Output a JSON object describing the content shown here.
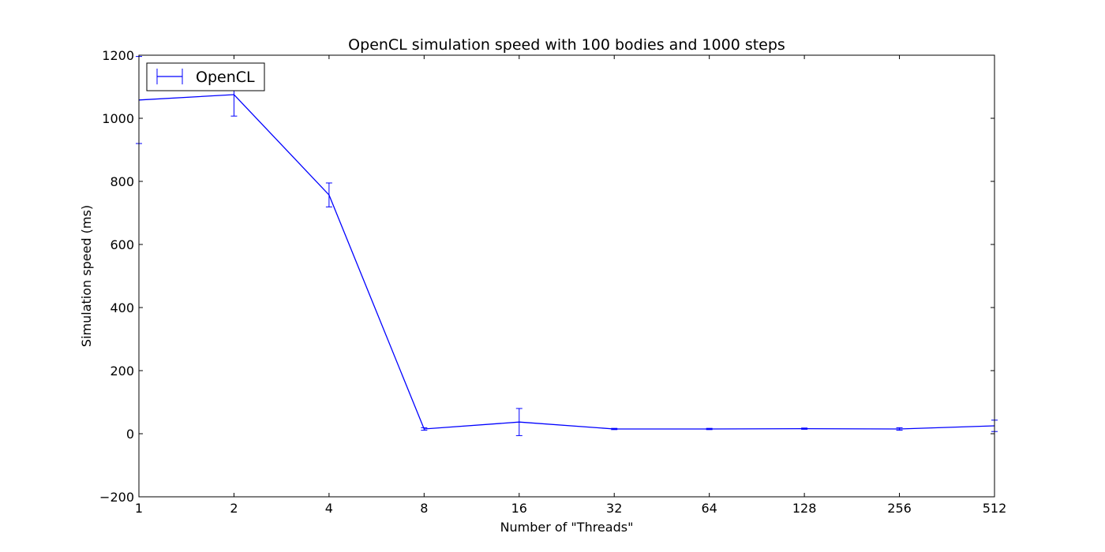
{
  "chart_data": {
    "type": "line",
    "title": "OpenCL simulation speed with 100 bodies and 1000 steps",
    "xlabel": "Number of \"Threads\"",
    "ylabel": "Simulation speed (ms)",
    "categories": [
      "1",
      "2",
      "4",
      "8",
      "16",
      "32",
      "64",
      "128",
      "256",
      "512"
    ],
    "ylim": [
      -200,
      1200
    ],
    "yticks": [
      "−200",
      "0",
      "200",
      "400",
      "600",
      "800",
      "1000",
      "1200"
    ],
    "ytick_values": [
      -200,
      0,
      200,
      400,
      600,
      800,
      1000,
      1200
    ],
    "grid": false,
    "legend": {
      "position": "top-left",
      "entries": [
        "OpenCL"
      ]
    },
    "series": [
      {
        "name": "OpenCL",
        "color": "#0000ff",
        "values": [
          1058,
          1075,
          757,
          15,
          37,
          15,
          15,
          16,
          15,
          25
        ],
        "errors": [
          138,
          68,
          38,
          4,
          43,
          2,
          2,
          2,
          4,
          18
        ]
      }
    ]
  }
}
